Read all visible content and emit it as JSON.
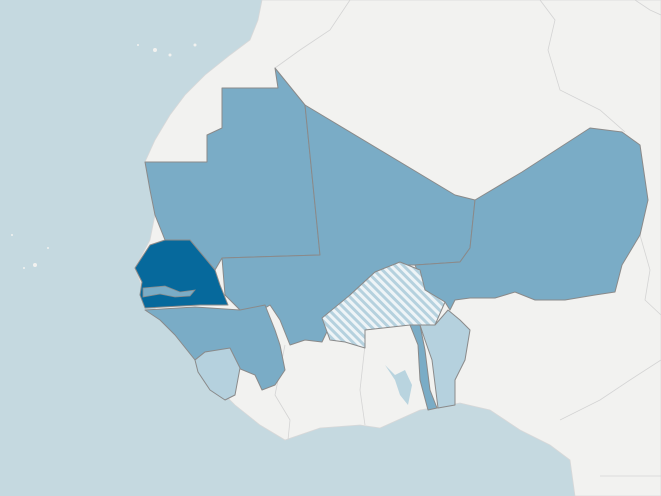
{
  "map": {
    "colors": {
      "ocean": "#c5d9e0",
      "land": "#f2f2f0",
      "highlight_dark": "#06699c",
      "highlight_medium": "#7aacc6",
      "highlight_light": "#b5d1de",
      "hatched": "#d6e6ee",
      "lakes": "#b9d4df"
    },
    "regions": [
      {
        "id": "mauritania",
        "shade": "medium"
      },
      {
        "id": "mali",
        "shade": "medium"
      },
      {
        "id": "niger",
        "shade": "medium"
      },
      {
        "id": "senegal",
        "shade": "dark"
      },
      {
        "id": "guinea",
        "shade": "medium"
      },
      {
        "id": "sierra-leone",
        "shade": "light"
      },
      {
        "id": "burkina-faso",
        "shade": "hatched"
      },
      {
        "id": "togo",
        "shade": "medium"
      },
      {
        "id": "benin",
        "shade": "light"
      }
    ]
  }
}
